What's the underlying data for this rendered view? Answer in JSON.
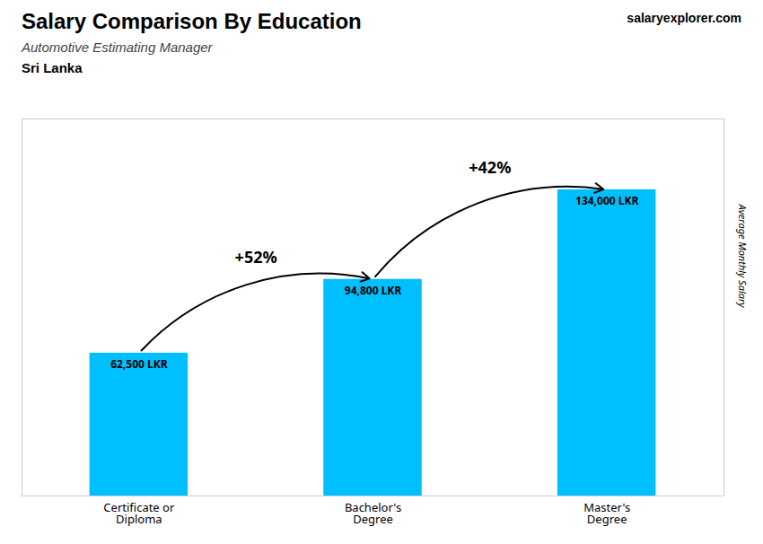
{
  "chart_data": {
    "type": "bar",
    "title": "Salary Comparison By Education",
    "subtitle": "Automotive Estimating Manager",
    "country": "Sri Lanka",
    "source": "salaryexplorer.com",
    "ylabel": "Average Monthly Salary",
    "categories": [
      "Certificate or\nDiploma",
      "Bachelor's\nDegree",
      "Master's\nDegree"
    ],
    "values": [
      62500,
      94800,
      134000
    ],
    "value_labels": [
      "62,500 LKR",
      "94,800 LKR",
      "134,000 LKR"
    ],
    "data_labels": true,
    "annotations": [
      "+52%",
      "+42%"
    ],
    "color": "#00BFFF",
    "ylim": [
      0,
      165000
    ],
    "tick_labels": "x"
  }
}
